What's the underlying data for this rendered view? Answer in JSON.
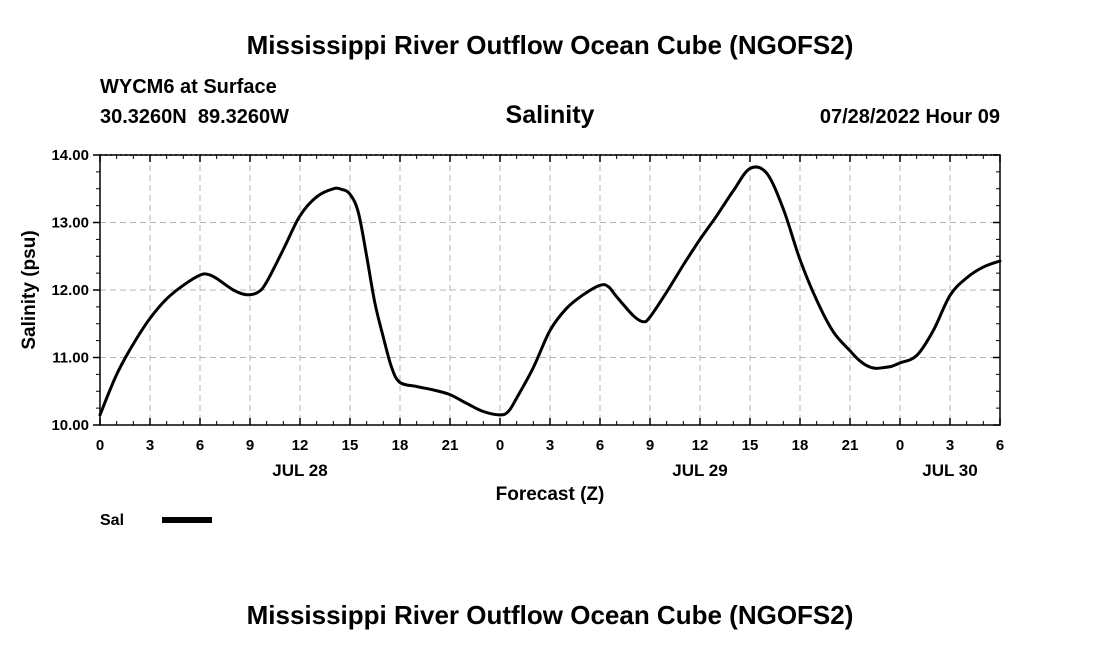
{
  "page_title_top": "Mississippi River Outflow Ocean Cube (NGOFS2)",
  "page_title_bottom": "Mississippi River Outflow Ocean Cube (NGOFS2)",
  "station": {
    "name_line": "WYCM6 at Surface",
    "coords_line": "30.3260N  89.3260W",
    "datetime_line": "07/28/2022 Hour 09"
  },
  "chart_data": {
    "type": "line",
    "title": "Salinity",
    "xlabel": "Forecast (Z)",
    "ylabel": "Salinity (psu)",
    "xlim": [
      0,
      54
    ],
    "ylim": [
      10.0,
      14.0
    ],
    "grid": true,
    "x_ticks": [
      0,
      3,
      6,
      9,
      12,
      15,
      18,
      21,
      24,
      27,
      30,
      33,
      36,
      39,
      42,
      45,
      48,
      51,
      54
    ],
    "x_tick_labels": [
      "0",
      "3",
      "6",
      "9",
      "12",
      "15",
      "18",
      "21",
      "0",
      "3",
      "6",
      "9",
      "12",
      "15",
      "18",
      "21",
      "0",
      "3",
      "6"
    ],
    "y_ticks": [
      10.0,
      11.0,
      12.0,
      13.0,
      14.0
    ],
    "y_tick_labels": [
      "10.00",
      "11.00",
      "12.00",
      "13.00",
      "14.00"
    ],
    "date_labels": [
      {
        "x": 12,
        "label": "JUL 28"
      },
      {
        "x": 36,
        "label": "JUL 29"
      },
      {
        "x": 51,
        "label": "JUL 30"
      }
    ],
    "legend": {
      "position": "bottom-left",
      "entries": [
        {
          "name": "Sal"
        }
      ]
    },
    "series": [
      {
        "name": "Sal",
        "x": [
          0,
          1,
          2,
          3,
          4,
          5,
          6,
          6.5,
          7,
          8,
          8.8,
          9.5,
          10,
          11,
          12,
          13,
          14,
          14.5,
          15,
          15.5,
          16,
          16.5,
          17,
          17.5,
          18,
          19,
          20,
          21,
          22,
          23,
          24,
          24.5,
          25,
          26,
          27,
          28,
          29,
          30,
          30.5,
          31,
          32,
          32.6,
          33,
          34,
          35,
          36,
          37,
          38,
          39,
          40,
          41,
          42,
          43,
          44,
          45,
          45.5,
          46,
          46.5,
          47,
          47.5,
          48,
          49,
          50,
          51,
          52,
          53,
          54
        ],
        "values": [
          10.15,
          10.75,
          11.2,
          11.58,
          11.87,
          12.07,
          12.22,
          12.23,
          12.17,
          12.0,
          11.93,
          11.97,
          12.12,
          12.6,
          13.1,
          13.38,
          13.5,
          13.49,
          13.42,
          13.15,
          12.5,
          11.8,
          11.3,
          10.85,
          10.63,
          10.57,
          10.52,
          10.45,
          10.32,
          10.2,
          10.15,
          10.2,
          10.4,
          10.85,
          11.4,
          11.73,
          11.93,
          12.07,
          12.05,
          11.9,
          11.62,
          11.53,
          11.6,
          11.97,
          12.37,
          12.75,
          13.1,
          13.47,
          13.8,
          13.73,
          13.2,
          12.45,
          11.85,
          11.38,
          11.1,
          10.97,
          10.88,
          10.84,
          10.85,
          10.87,
          10.92,
          11.03,
          11.4,
          11.92,
          12.18,
          12.34,
          12.43
        ]
      }
    ]
  }
}
